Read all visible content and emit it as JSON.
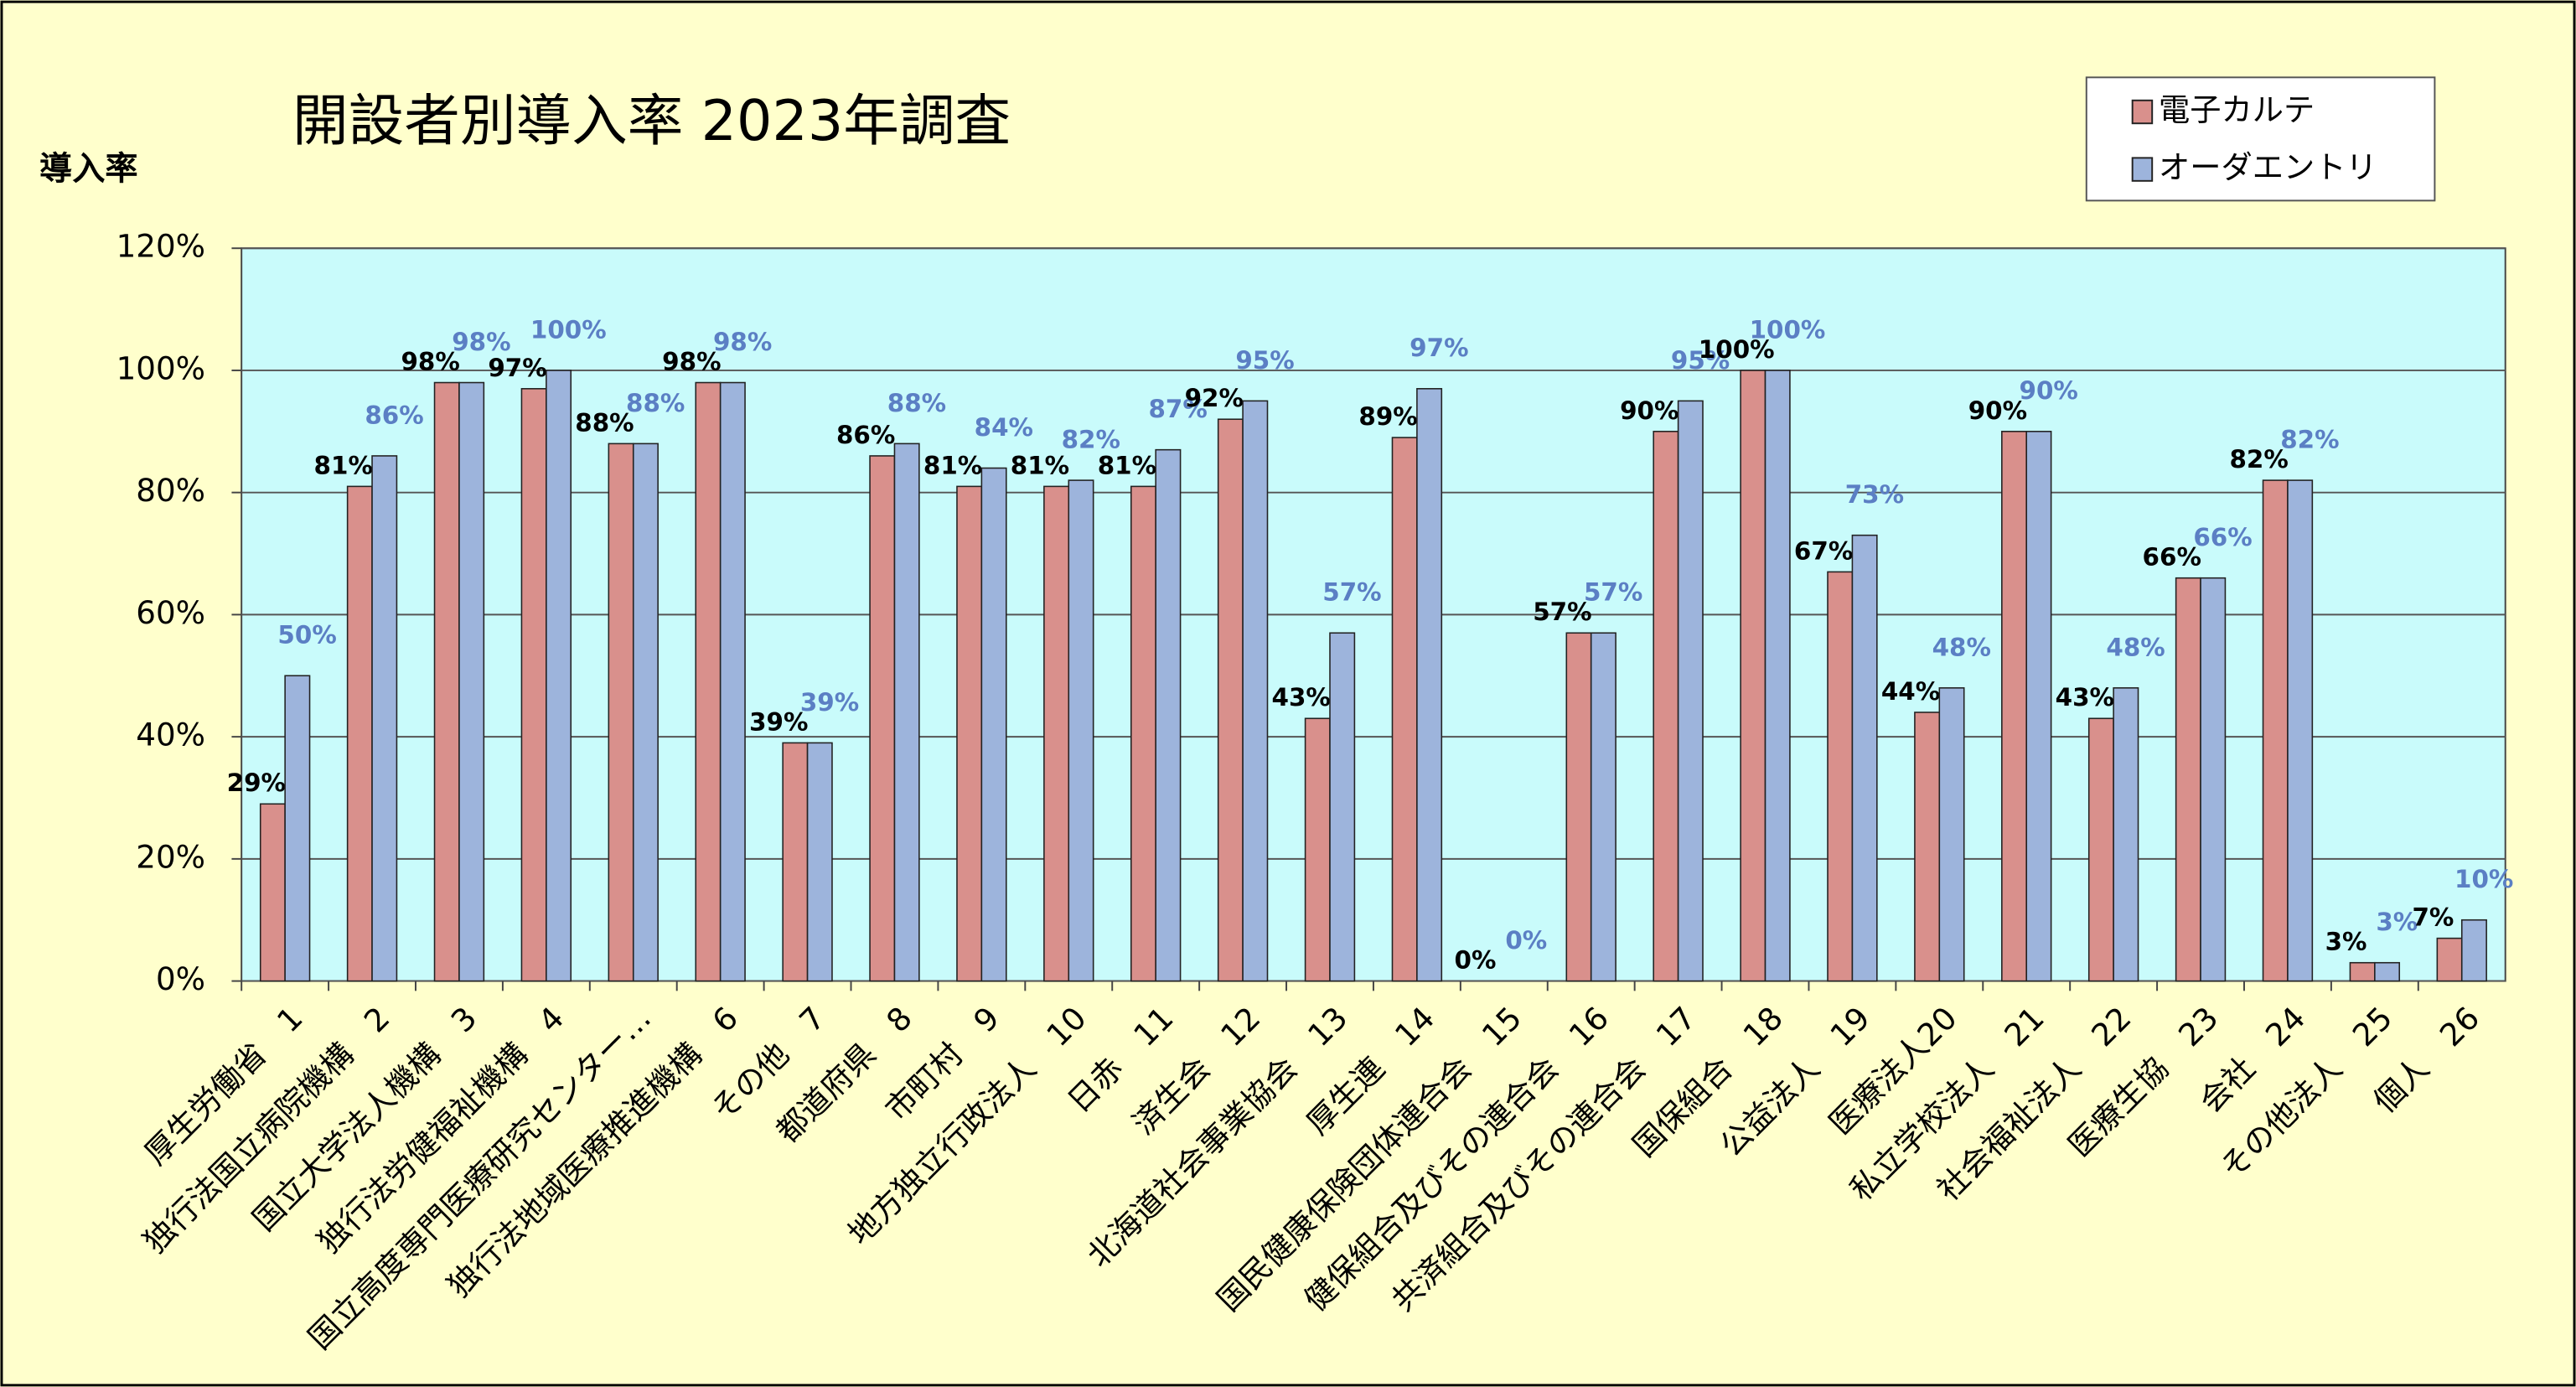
{
  "chart_data": {
    "type": "bar",
    "title": "開設者別導入率  2023年調査",
    "y_label": "導入率",
    "categories": [
      "厚生労働省　1",
      "独行法国立病院機構　2",
      "国立大学法人機構　3",
      "独行法労健福祉機構　4",
      "国立高度専門医療研究センター…",
      "独行法地域医療推進機構　6",
      "その他　7",
      "都道府県　8",
      "市町村　9",
      "地方独立行政法人　10",
      "日赤　11",
      "済生会　12",
      "北海道社会事業協会　13",
      "厚生連　14",
      "国民健康保険団体連合会　15",
      "健保組合及びその連合会　16",
      "共済組合及びその連合会　17",
      "国保組合　18",
      "公益法人　19",
      "医療法人20",
      "私立学校法人　21",
      "社会福祉法人　22",
      "医療生協　23",
      "会社　24",
      "その他法人　25",
      "個人　26"
    ],
    "series": [
      {
        "name": "電子カルテ",
        "color": "#d9908c",
        "label_color": "#000000",
        "values": [
          29,
          81,
          98,
          97,
          88,
          98,
          39,
          86,
          81,
          81,
          81,
          92,
          43,
          89,
          0,
          57,
          90,
          100,
          67,
          44,
          90,
          43,
          66,
          82,
          3,
          7
        ],
        "value_labels": [
          "29%",
          "81%",
          "98%",
          "97%",
          "88%",
          "98%",
          "39%",
          "86%",
          "81%",
          "81%",
          "81%",
          "92%",
          "43%",
          "89%",
          "0%",
          "57%",
          "90%",
          "100%",
          "67%",
          "44%",
          "90%",
          "43%",
          "66%",
          "82%",
          "3%",
          "7%"
        ]
      },
      {
        "name": "オーダエントリ",
        "color": "#9db4dc",
        "label_color": "#5b7fc4",
        "values": [
          50,
          86,
          98,
          100,
          88,
          98,
          39,
          88,
          84,
          82,
          87,
          95,
          57,
          97,
          0,
          57,
          95,
          100,
          73,
          48,
          90,
          48,
          66,
          82,
          3,
          10
        ],
        "value_labels": [
          "50%",
          "86%",
          "98%",
          "100%",
          "88%",
          "98%",
          "39%",
          "88%",
          "84%",
          "82%",
          "87%",
          "95%",
          "57%",
          "97%",
          "0%",
          "57%",
          "95%",
          "100%",
          "73%",
          "48%",
          "90%",
          "48%",
          "66%",
          "82%",
          "3%",
          "10%"
        ]
      }
    ],
    "ylim": [
      0,
      120
    ],
    "yticks": [
      {
        "value": 0,
        "label": "0%"
      },
      {
        "value": 20,
        "label": "20%"
      },
      {
        "value": 40,
        "label": "40%"
      },
      {
        "value": 60,
        "label": "60%"
      },
      {
        "value": 80,
        "label": "80%"
      },
      {
        "value": 100,
        "label": "100%"
      },
      {
        "value": 120,
        "label": "120%"
      }
    ],
    "grid": true,
    "legend": "top-right"
  }
}
